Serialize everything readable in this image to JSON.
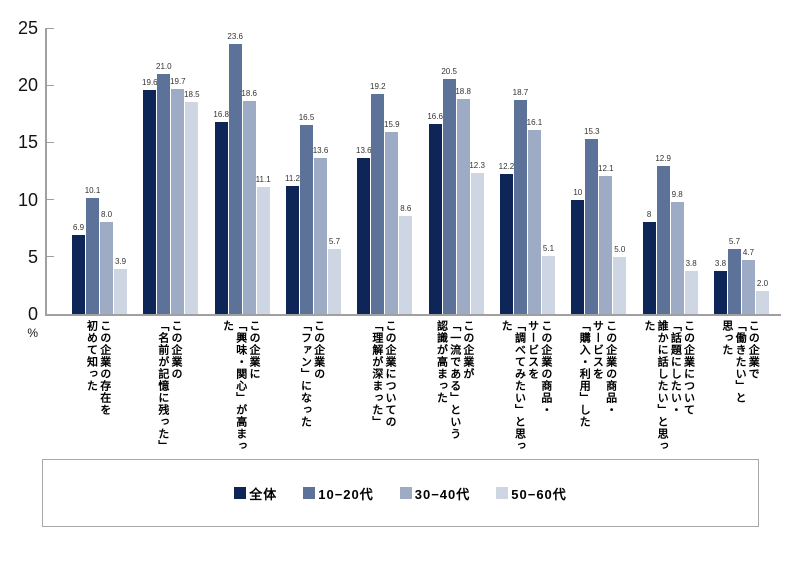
{
  "chart_data": {
    "type": "bar",
    "title": "",
    "unit_label": "%",
    "ylim": [
      0,
      25
    ],
    "yticks": [
      0,
      5,
      10,
      15,
      20,
      25
    ],
    "grid": false,
    "legend_position": "bottom-boxed",
    "categories": [
      "この企業の存在を\n初めて知った",
      "この企業の\n「名前が記憶に残った」",
      "この企業に\n「興味・関心」が高まった",
      "この企業の\n「ファン」になった",
      "この企業についての\n「理解が深まった」",
      "この企業が\n「一流である」という\n認識が高まった",
      "この企業の商品・\nサービスを\n「調べてみたい」と思った",
      "この企業の商品・\nサービスを\n「購入・利用」した",
      "この企業について\n「話題にしたい・\n誰かに話したい」と思った",
      "この企業で\n「働きたい」と\n思った"
    ],
    "series": [
      {
        "name": "全体",
        "color": "#0e2557",
        "values": [
          "6.9",
          "19.6",
          "16.8",
          "11.2",
          "13.6",
          "16.6",
          "12.2",
          "10",
          "8",
          "3.8"
        ]
      },
      {
        "name": "10−20代",
        "color": "#5d7299",
        "values": [
          "10.1",
          "21.0",
          "23.6",
          "16.5",
          "19.2",
          "20.5",
          "18.7",
          "15.3",
          "12.9",
          "5.7"
        ]
      },
      {
        "name": "30−40代",
        "color": "#9dabc4",
        "values": [
          "8.0",
          "19.7",
          "18.6",
          "13.6",
          "15.9",
          "18.8",
          "16.1",
          "12.1",
          "9.8",
          "4.7"
        ]
      },
      {
        "name": "50−60代",
        "color": "#ced6e3",
        "values": [
          "3.9",
          "18.5",
          "11.1",
          "5.7",
          "8.6",
          "12.3",
          "5.1",
          "5.0",
          "3.8",
          "2.0"
        ]
      }
    ]
  }
}
